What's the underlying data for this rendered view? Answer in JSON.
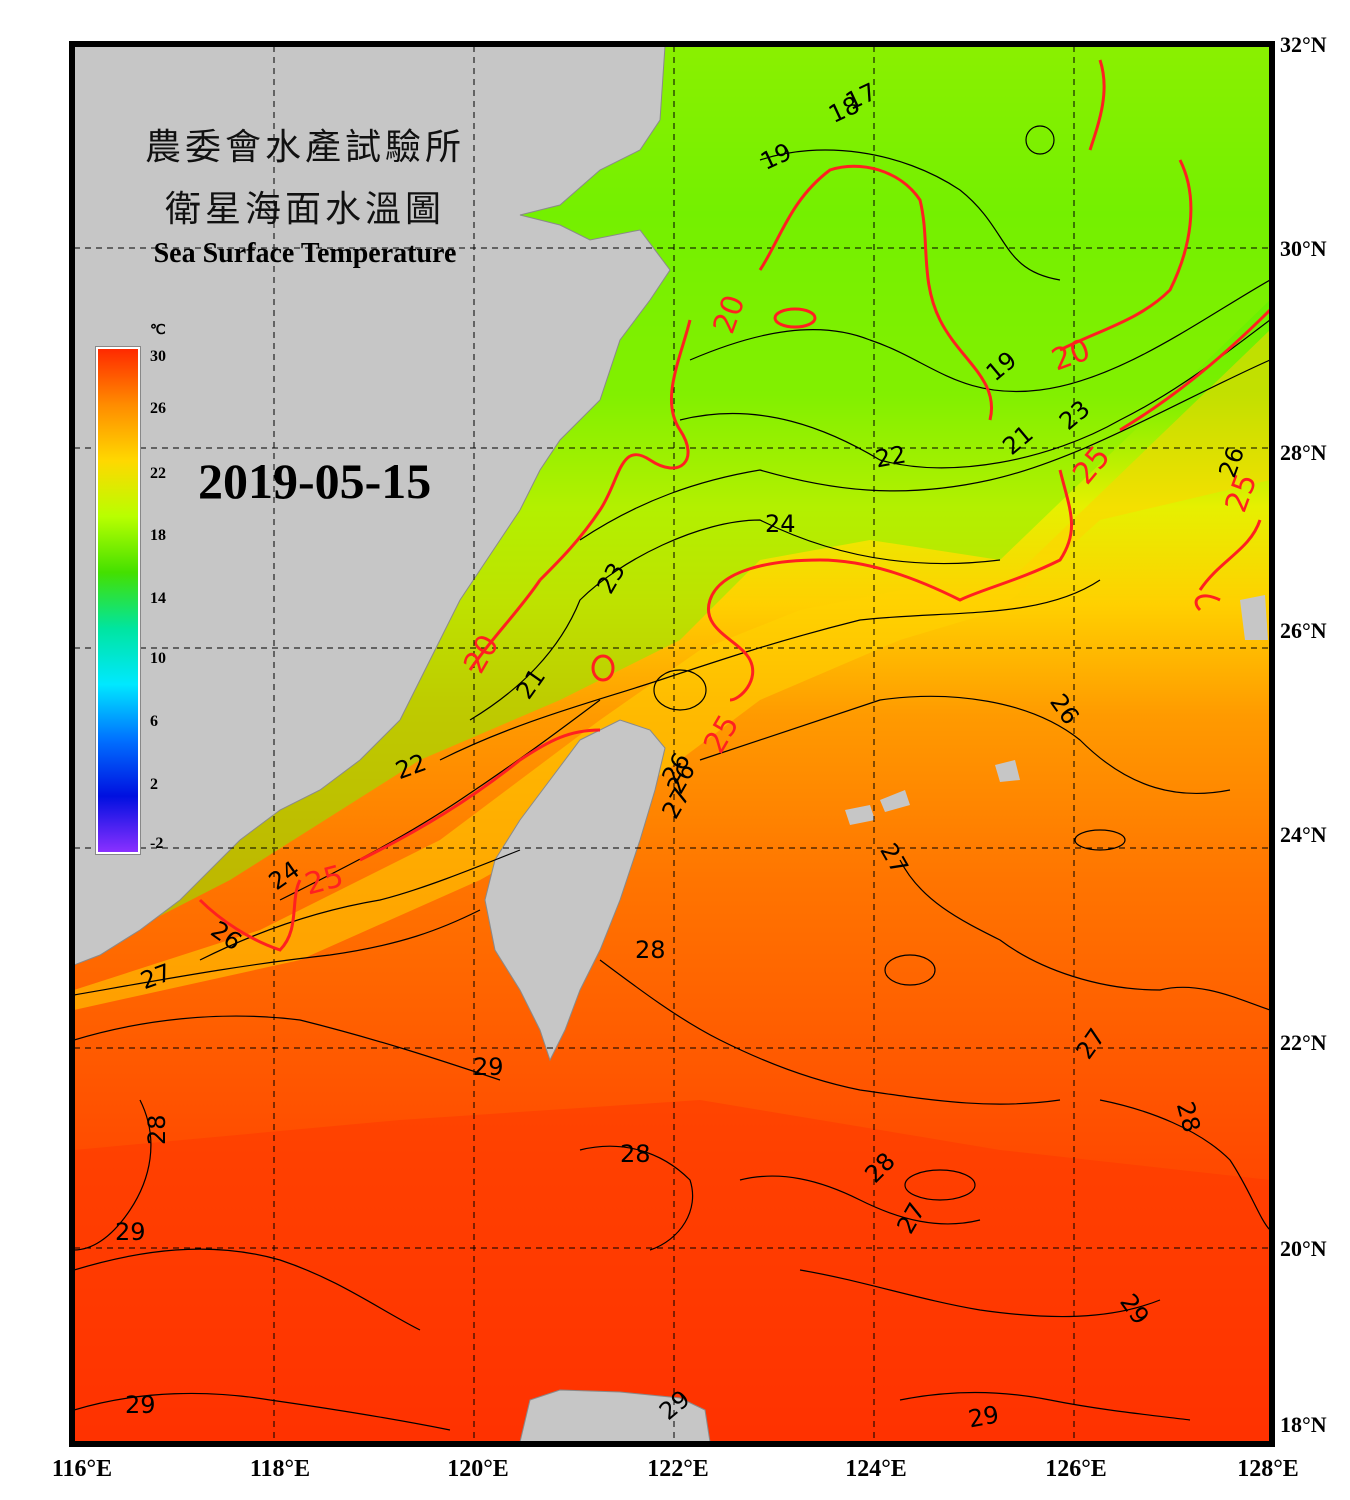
{
  "title": {
    "zh_line1": "農委會水產試驗所",
    "zh_line2": "衛星海面水溫圖",
    "en": "Sea Surface Temperature"
  },
  "date": "2019-05-15",
  "colorbar": {
    "unit": "℃",
    "ticks": [
      "30",
      "26",
      "22",
      "18",
      "14",
      "10",
      "6",
      "2",
      "-2"
    ],
    "colors": [
      "#ff2a00",
      "#ff8c00",
      "#ffd800",
      "#b8ff00",
      "#44e000",
      "#00e5a0",
      "#00e8ff",
      "#0070ff",
      "#0010e0",
      "#8a30ff"
    ]
  },
  "axes": {
    "lat_labels": [
      "32°N",
      "30°N",
      "28°N",
      "26°N",
      "24°N",
      "22°N",
      "20°N",
      "18°N"
    ],
    "lon_labels": [
      "116°E",
      "118°E",
      "120°E",
      "122°E",
      "124°E",
      "126°E",
      "128°E"
    ]
  },
  "contour_labels": {
    "red": [
      "20",
      "20",
      "20",
      "25",
      "25",
      "25",
      "25"
    ],
    "black": [
      "17",
      "18",
      "19",
      "19",
      "21",
      "21",
      "22",
      "22",
      "22",
      "23",
      "23",
      "24",
      "24",
      "26",
      "26",
      "26",
      "26",
      "27",
      "27",
      "27",
      "27",
      "27",
      "28",
      "28",
      "28",
      "28",
      "28",
      "29",
      "29",
      "29",
      "29",
      "29",
      "29",
      "26"
    ]
  },
  "colors": {
    "land": "#c6c6c6",
    "frame": "#000000",
    "contour_red": "#ff2020",
    "contour_black": "#000000",
    "sea_warm": "#ff4a00",
    "sea_mid": "#ffb400",
    "sea_cool": "#50f000"
  }
}
